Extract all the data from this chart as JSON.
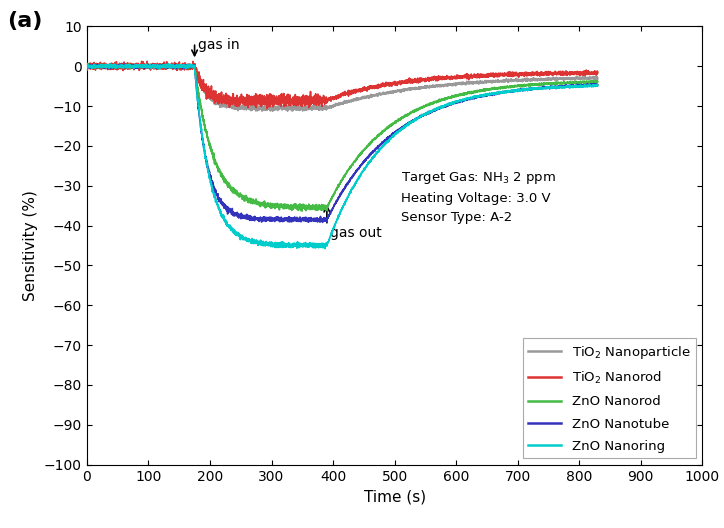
{
  "title_label": "(a)",
  "xlabel": "Time (s)",
  "ylabel": "Sensitivity (%)",
  "xlim": [
    0,
    1000
  ],
  "ylim": [
    -100,
    10
  ],
  "yticks": [
    10,
    0,
    -10,
    -20,
    -30,
    -40,
    -50,
    -60,
    -70,
    -80,
    -90,
    -100
  ],
  "xticks": [
    0,
    100,
    200,
    300,
    400,
    500,
    600,
    700,
    800,
    900,
    1000
  ],
  "gas_in_t": 175,
  "gas_out_t": 390,
  "info_text_line1": "Target Gas: NH",
  "info_text_line2": " 2 ppm",
  "info_text_rest": "Heating Voltage: 3.0 V\nSensor Type: A-2",
  "legend_entries": [
    {
      "label": "TiO₂ Nanoparticle",
      "color": "#999999"
    },
    {
      "label": "TiO₂ Nanorod",
      "color": "#dd3333"
    },
    {
      "label": "ZnO Nanorod",
      "color": "#44bb44"
    },
    {
      "label": "ZnO Nanotube",
      "color": "#3333bb"
    },
    {
      "label": "ZnO Nanoring",
      "color": "#00cccc"
    }
  ],
  "background_color": "#ffffff",
  "figure_bg": "#ffffff",
  "curves": {
    "tio2_np": {
      "min_val": -10.5,
      "recovery_val": -2.5,
      "decay_tau": 18,
      "recovery_tau": 150,
      "noise_base": 0.25,
      "noise_gas": 0.3,
      "seed": 1
    },
    "tio2_nr": {
      "min_val": -8.5,
      "recovery_val": -1.5,
      "decay_tau": 15,
      "recovery_tau": 120,
      "noise_base": 0.4,
      "noise_gas": 0.7,
      "seed": 2
    },
    "zno_nr": {
      "min_val": -35.5,
      "recovery_val": -3.5,
      "decay_tau": 30,
      "recovery_tau": 100,
      "noise_base": 0.2,
      "noise_gas": 0.35,
      "seed": 3
    },
    "zno_nt": {
      "min_val": -38.5,
      "recovery_val": -4.0,
      "decay_tau": 20,
      "recovery_tau": 110,
      "noise_base": 0.2,
      "noise_gas": 0.3,
      "seed": 4
    },
    "zno_nring": {
      "min_val": -45.0,
      "recovery_val": -4.5,
      "decay_tau": 25,
      "recovery_tau": 95,
      "noise_base": 0.2,
      "noise_gas": 0.3,
      "seed": 5
    }
  }
}
